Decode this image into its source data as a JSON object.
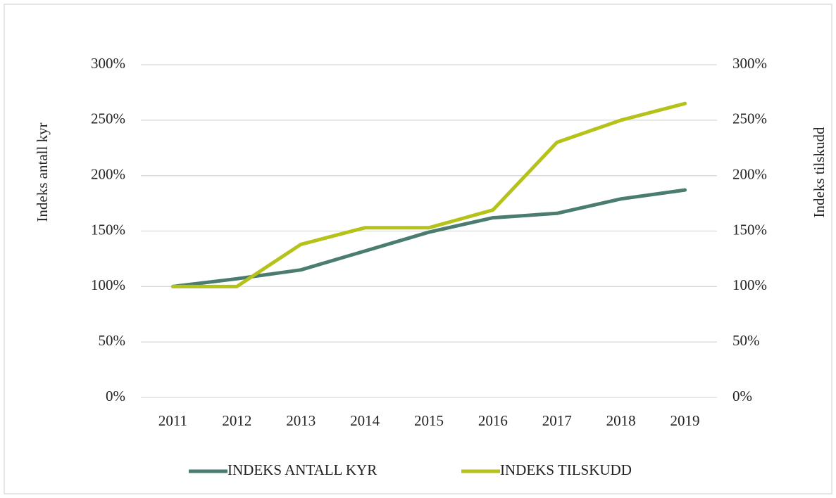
{
  "chart_data": {
    "type": "line",
    "categories": [
      "2011",
      "2012",
      "2013",
      "2014",
      "2015",
      "2016",
      "2017",
      "2018",
      "2019"
    ],
    "series": [
      {
        "name": "INDEKS ANTALL KYR",
        "color": "#4a7c6f",
        "values": [
          100,
          107,
          115,
          132,
          149,
          162,
          166,
          179,
          187
        ]
      },
      {
        "name": "INDEKS TILSKUDD",
        "color": "#b5c21a",
        "axis": "y2",
        "values": [
          100,
          100,
          138,
          153,
          153,
          169,
          230,
          250,
          265
        ]
      }
    ],
    "ylabel": "Indeks antall kyr",
    "y2label": "Indeks tilskudd",
    "ylim": [
      0,
      300
    ],
    "yticks": [
      {
        "value": 0,
        "label": "0%"
      },
      {
        "value": 50,
        "label": "50%"
      },
      {
        "value": 100,
        "label": "100%"
      },
      {
        "value": 150,
        "label": "150%"
      },
      {
        "value": 200,
        "label": "200%"
      },
      {
        "value": 250,
        "label": "250%"
      },
      {
        "value": 300,
        "label": "300%"
      }
    ],
    "y2lim": [
      0,
      300
    ],
    "y2ticks": [
      {
        "value": 0,
        "label": "0%"
      },
      {
        "value": 50,
        "label": "50%"
      },
      {
        "value": 100,
        "label": "100%"
      },
      {
        "value": 150,
        "label": "150%"
      },
      {
        "value": 200,
        "label": "200%"
      },
      {
        "value": 250,
        "label": "250%"
      },
      {
        "value": 300,
        "label": "300%"
      }
    ],
    "grid": true,
    "legend": "bottom"
  }
}
